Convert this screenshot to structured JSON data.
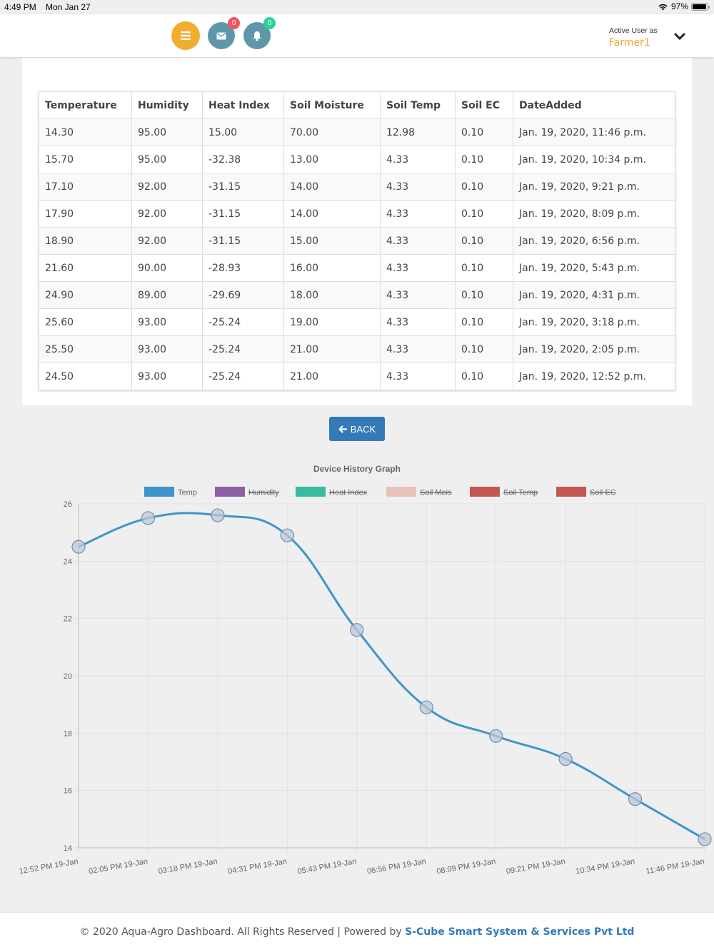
{
  "status_bar": {
    "time": "4:49 PM",
    "date": "Mon Jan 27",
    "battery": "97%"
  },
  "header": {
    "mail_badge": "0",
    "bell_badge": "0",
    "active_user_label": "Active User as",
    "user_name": "Farmer1"
  },
  "table": {
    "columns": [
      "Temperature",
      "Humidity",
      "Heat Index",
      "Soil Moisture",
      "Soil Temp",
      "Soil EC",
      "DateAdded"
    ],
    "rows": [
      [
        "14.30",
        "95.00",
        "15.00",
        "70.00",
        "12.98",
        "0.10",
        "Jan. 19, 2020, 11:46 p.m."
      ],
      [
        "15.70",
        "95.00",
        "-32.38",
        "13.00",
        "4.33",
        "0.10",
        "Jan. 19, 2020, 10:34 p.m."
      ],
      [
        "17.10",
        "92.00",
        "-31.15",
        "14.00",
        "4.33",
        "0.10",
        "Jan. 19, 2020, 9:21 p.m."
      ],
      [
        "17.90",
        "92.00",
        "-31.15",
        "14.00",
        "4.33",
        "0.10",
        "Jan. 19, 2020, 8:09 p.m."
      ],
      [
        "18.90",
        "92.00",
        "-31.15",
        "15.00",
        "4.33",
        "0.10",
        "Jan. 19, 2020, 6:56 p.m."
      ],
      [
        "21.60",
        "90.00",
        "-28.93",
        "16.00",
        "4.33",
        "0.10",
        "Jan. 19, 2020, 5:43 p.m."
      ],
      [
        "24.90",
        "89.00",
        "-29.69",
        "18.00",
        "4.33",
        "0.10",
        "Jan. 19, 2020, 4:31 p.m."
      ],
      [
        "25.60",
        "93.00",
        "-25.24",
        "19.00",
        "4.33",
        "0.10",
        "Jan. 19, 2020, 3:18 p.m."
      ],
      [
        "25.50",
        "93.00",
        "-25.24",
        "21.00",
        "4.33",
        "0.10",
        "Jan. 19, 2020, 2:05 p.m."
      ],
      [
        "24.50",
        "93.00",
        "-25.24",
        "21.00",
        "4.33",
        "0.10",
        "Jan. 19, 2020, 12:52 p.m."
      ]
    ]
  },
  "back_label": "BACK",
  "chart_data": {
    "type": "line",
    "title": "Device History Graph",
    "categories": [
      "12:52 PM 19-Jan",
      "02:05 PM 19-Jan",
      "03:18 PM 19-Jan",
      "04:31 PM 19-Jan",
      "05:43 PM 19-Jan",
      "06:56 PM 19-Jan",
      "08:09 PM 19-Jan",
      "09:21 PM 19-Jan",
      "10:34 PM 19-Jan",
      "11:46 PM 19-Jan"
    ],
    "legend": [
      {
        "name": "Temp",
        "color": "#3e95cd",
        "hidden": false
      },
      {
        "name": "Humidity",
        "color": "#8e5ea2",
        "hidden": true
      },
      {
        "name": "Heat Index",
        "color": "#3cba9f",
        "hidden": true
      },
      {
        "name": "Soil Mois",
        "color": "#e8c3b9",
        "hidden": true
      },
      {
        "name": "Soil Temp",
        "color": "#c45850",
        "hidden": true
      },
      {
        "name": "Soil EC",
        "color": "#c45850",
        "hidden": true
      }
    ],
    "series": [
      {
        "name": "Temp",
        "values": [
          24.5,
          25.5,
          25.6,
          24.9,
          21.6,
          18.9,
          17.9,
          17.1,
          15.7,
          14.3
        ]
      }
    ],
    "ylim": [
      14,
      26
    ],
    "yticks": [
      14,
      16,
      18,
      20,
      22,
      24,
      26
    ],
    "grid": true,
    "legend_position": "top"
  },
  "footer": {
    "text": "© 2020 Aqua-Agro Dashboard. All Rights Reserved | Powered by ",
    "brand": "S-Cube Smart System & Services Pvt Ltd"
  }
}
